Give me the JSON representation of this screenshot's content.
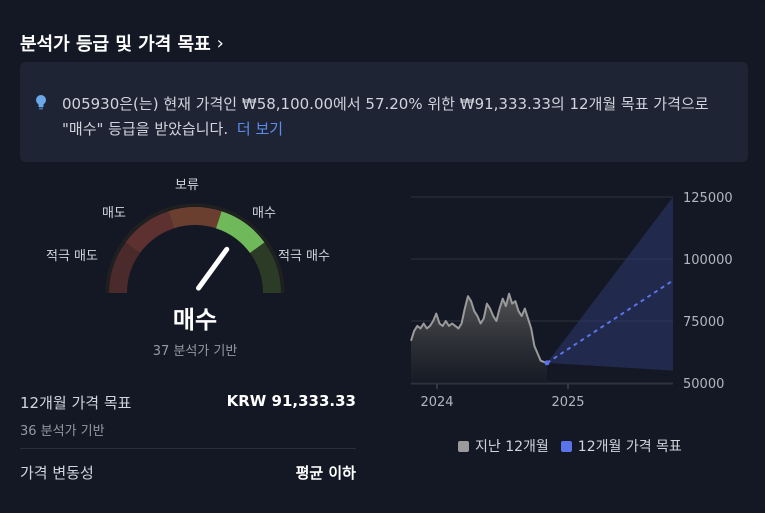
{
  "header": {
    "title": "분석가 등급 및 가격 목표",
    "chevron_icon": "chevron-right-icon"
  },
  "summary": {
    "icon": "lightbulb-icon",
    "text": "005930은(는) 현재 가격인 ₩58,100.00에서 57.20% 위한 ₩91,333.33의 12개월 목표 가격으로 \"매수\" 등급을 받았습니다.",
    "more_label": "더 보기"
  },
  "gauge": {
    "labels": {
      "strong_sell": "적극 매도",
      "sell": "매도",
      "neutral": "보류",
      "buy": "매수",
      "strong_buy": "적극 매수"
    },
    "colors": {
      "strong_sell": "#4a2a2a",
      "sell": "#5c3130",
      "neutral": "#6b3f30",
      "buy": "#6fb95a",
      "strong_buy": "#2c3b26"
    },
    "active_segment": "buy",
    "needle_value": 0.7,
    "rating": "매수",
    "rating_basis": "37 분석가 기반"
  },
  "price_target": {
    "label": "12개월 가격 목표",
    "value": "KRW 91,333.33",
    "basis": "36 분석가 기반"
  },
  "volatility": {
    "label": "가격 변동성",
    "value": "평균 이하"
  },
  "chart_data": {
    "type": "line",
    "y_ticks": [
      "125000",
      "100000",
      "75000",
      "50000"
    ],
    "y_tick_values": [
      125000,
      100000,
      75000,
      50000
    ],
    "ylim": [
      50000,
      125000
    ],
    "x_ticks": [
      "2024",
      "2025"
    ],
    "series": [
      {
        "name": "지난 12개월",
        "color": "#9a9a9a",
        "values": [
          67000,
          71000,
          73000,
          72000,
          74000,
          72000,
          73000,
          75000,
          78000,
          74000,
          73000,
          75000,
          73000,
          74000,
          73000,
          72000,
          74000,
          80000,
          85000,
          83000,
          79000,
          77000,
          74000,
          76000,
          82000,
          80000,
          77000,
          75000,
          80000,
          84000,
          81000,
          86000,
          82000,
          83000,
          79000,
          77000,
          80000,
          76000,
          72000,
          65000,
          62000,
          59000,
          58500,
          58100
        ]
      },
      {
        "name": "12개월 가격 목표",
        "color": "#5b73e8",
        "values": [
          58100,
          91333.33
        ]
      }
    ],
    "target_range": {
      "high": 125000,
      "low": 55000
    }
  },
  "legend": {
    "past": {
      "label": "지난 12개월",
      "color": "#9a9a9a"
    },
    "target": {
      "label": "12개월 가격 목표",
      "color": "#5b73e8"
    }
  }
}
